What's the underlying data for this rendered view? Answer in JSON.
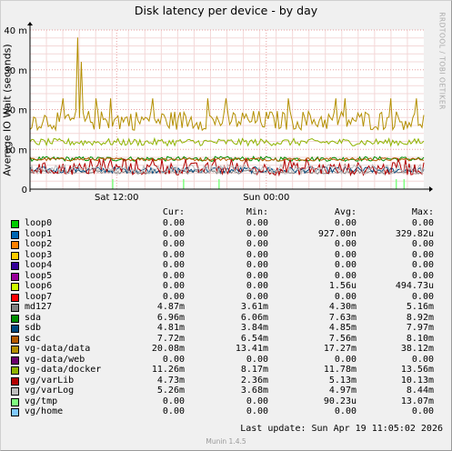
{
  "chart_data": {
    "type": "line",
    "title": "Disk latency per device - by day",
    "ylabel": "Average IO Wait (seconds)",
    "ylim": [
      0,
      40
    ],
    "y_ticks": [
      {
        "value": 0,
        "label": "0"
      },
      {
        "value": 10,
        "label": "10 m"
      },
      {
        "value": 20,
        "label": "20 m"
      },
      {
        "value": 30,
        "label": "30 m"
      },
      {
        "value": 40,
        "label": "40 m"
      }
    ],
    "x_ticks": [
      {
        "pos": 0.22,
        "label": "Sat 12:00"
      },
      {
        "pos": 0.6,
        "label": "Sun 00:00"
      }
    ],
    "grid": true,
    "unit": "ms",
    "series": [
      {
        "name": "loop0",
        "color": "#00cc00",
        "cur": "0.00",
        "min": "0.00",
        "avg": "0.00",
        "max": "0.00",
        "mean": 0,
        "noise": 0
      },
      {
        "name": "loop1",
        "color": "#0066b3",
        "cur": "0.00",
        "min": "0.00",
        "avg": "927.00n",
        "max": "329.82u",
        "mean": 0,
        "noise": 0
      },
      {
        "name": "loop2",
        "color": "#ff8000",
        "cur": "0.00",
        "min": "0.00",
        "avg": "0.00",
        "max": "0.00",
        "mean": 0,
        "noise": 0
      },
      {
        "name": "loop3",
        "color": "#ffcc00",
        "cur": "0.00",
        "min": "0.00",
        "avg": "0.00",
        "max": "0.00",
        "mean": 0,
        "noise": 0
      },
      {
        "name": "loop4",
        "color": "#330099",
        "cur": "0.00",
        "min": "0.00",
        "avg": "0.00",
        "max": "0.00",
        "mean": 0,
        "noise": 0
      },
      {
        "name": "loop5",
        "color": "#990099",
        "cur": "0.00",
        "min": "0.00",
        "avg": "0.00",
        "max": "0.00",
        "mean": 0,
        "noise": 0
      },
      {
        "name": "loop6",
        "color": "#ccff00",
        "cur": "0.00",
        "min": "0.00",
        "avg": "1.56u",
        "max": "494.73u",
        "mean": 0,
        "noise": 0
      },
      {
        "name": "loop7",
        "color": "#ff0000",
        "cur": "0.00",
        "min": "0.00",
        "avg": "0.00",
        "max": "0.00",
        "mean": 0,
        "noise": 0
      },
      {
        "name": "md127",
        "color": "#808080",
        "cur": "4.87m",
        "min": "3.61m",
        "avg": "4.30m",
        "max": "5.16m",
        "mean": 4.3,
        "noise": 0.5
      },
      {
        "name": "sda",
        "color": "#008f00",
        "cur": "6.96m",
        "min": "6.06m",
        "avg": "7.63m",
        "max": "8.92m",
        "mean": 7.6,
        "noise": 0.6
      },
      {
        "name": "sdb",
        "color": "#00487d",
        "cur": "4.81m",
        "min": "3.84m",
        "avg": "4.85m",
        "max": "7.97m",
        "mean": 4.8,
        "noise": 0.8
      },
      {
        "name": "sdc",
        "color": "#b35a00",
        "cur": "7.72m",
        "min": "6.54m",
        "avg": "7.56m",
        "max": "8.10m",
        "mean": 7.5,
        "noise": 0.4
      },
      {
        "name": "vg-data/data",
        "color": "#b38f00",
        "cur": "20.08m",
        "min": "13.41m",
        "avg": "17.27m",
        "max": "38.12m",
        "mean": 17.3,
        "noise": 2.5
      },
      {
        "name": "vg-data/web",
        "color": "#6b006b",
        "cur": "0.00",
        "min": "0.00",
        "avg": "0.00",
        "max": "0.00",
        "mean": 0,
        "noise": 0
      },
      {
        "name": "vg-data/docker",
        "color": "#8fb300",
        "cur": "11.26m",
        "min": "8.17m",
        "avg": "11.78m",
        "max": "13.56m",
        "mean": 11.8,
        "noise": 0.9
      },
      {
        "name": "vg/varLib",
        "color": "#b30000",
        "cur": "4.73m",
        "min": "2.36m",
        "avg": "5.13m",
        "max": "10.13m",
        "mean": 5.1,
        "noise": 1.6
      },
      {
        "name": "vg/varLog",
        "color": "#bebebe",
        "cur": "5.26m",
        "min": "3.68m",
        "avg": "4.97m",
        "max": "8.44m",
        "mean": 5.0,
        "noise": 1.2
      },
      {
        "name": "vg/tmp",
        "color": "#80ff80",
        "cur": "0.00",
        "min": "0.00",
        "avg": "90.23u",
        "max": "13.07m",
        "mean": 0,
        "noise": 0
      },
      {
        "name": "vg/home",
        "color": "#80c9ff",
        "cur": "0.00",
        "min": "0.00",
        "avg": "0.00",
        "max": "0.00",
        "mean": 0,
        "noise": 0
      }
    ]
  },
  "legend_headers": {
    "cur": "Cur:",
    "min": "Min:",
    "avg": "Avg:",
    "max": "Max:"
  },
  "last_update": "Last update:  Sun Apr 19 11:05:02 2026",
  "side_text": "RRDTOOL / TOBI OETIKER",
  "footer": "Munin 1.4.5"
}
